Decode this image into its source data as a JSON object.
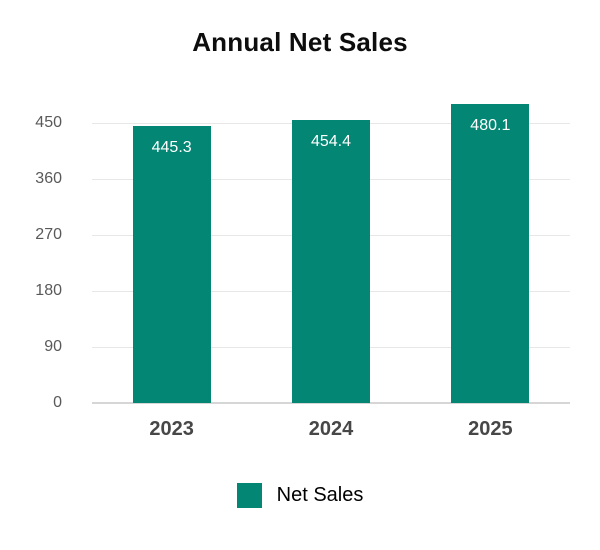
{
  "chart_data": {
    "type": "bar",
    "title": "Annual Net Sales",
    "categories": [
      "2023",
      "2024",
      "2025"
    ],
    "series": [
      {
        "name": "Net Sales",
        "values": [
          445.3,
          454.4,
          480.1
        ]
      }
    ],
    "value_labels": [
      "445.3",
      "454.4",
      "480.1"
    ],
    "xlabel": "",
    "ylabel": "",
    "y_ticks": [
      0,
      90,
      180,
      270,
      360,
      450
    ],
    "ylim": [
      0,
      483
    ],
    "grid": true,
    "legend_position": "bottom",
    "legend_entries": [
      "Net Sales"
    ]
  },
  "colors": {
    "bar": "#038673",
    "bar_value_label": "#ffffff",
    "title": "#0d0d0d",
    "y_tick_label": "#595959",
    "x_tick_label": "#474747",
    "gridline": "#e7e7e7",
    "axis_line": "#d6d6d6",
    "background": "#ffffff"
  }
}
